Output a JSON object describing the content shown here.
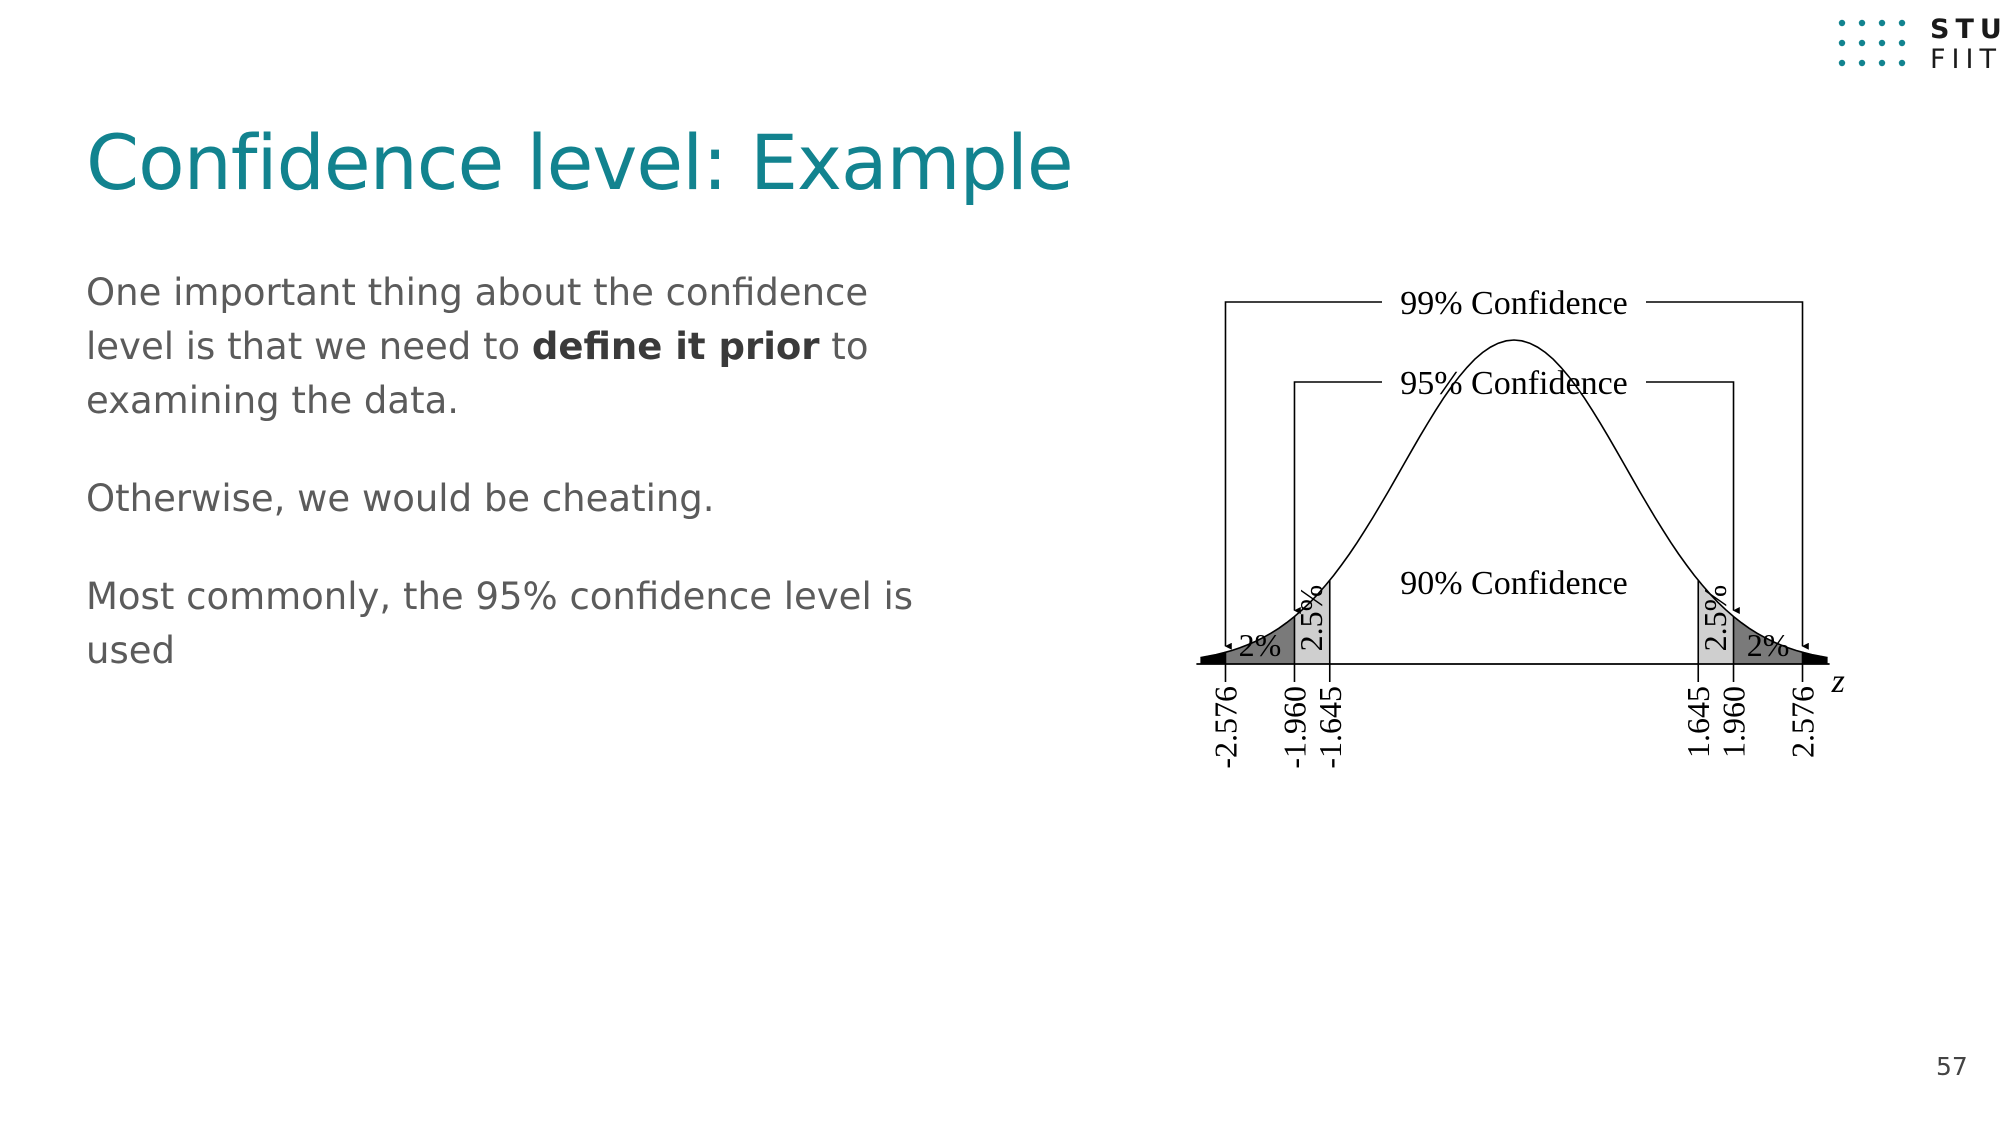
{
  "logo": {
    "line1": "STU",
    "line2": "FIIT"
  },
  "title": "Confidence level: Example",
  "paragraphs": {
    "p1_before": "One important thing about the confidence level is that we need to ",
    "p1_bold": "define it prior",
    "p1_after": " to examining the data.",
    "p2": "Otherwise, we would be cheating.",
    "p3": "Most commonly, the 95% confidence level is used"
  },
  "figure": {
    "label_99": "99% Confidence",
    "label_95": "95% Confidence",
    "label_90": "90% Confidence",
    "tail_2_left": "2%",
    "tail_25_left": "2.5%",
    "tail_25_right": "2.5%",
    "tail_2_right": "2%",
    "axis_label": "z",
    "ticks": [
      {
        "value": -2.576,
        "label": "-2.576"
      },
      {
        "value": -1.96,
        "label": "-1.960"
      },
      {
        "value": -1.645,
        "label": "-1.645"
      },
      {
        "value": 1.645,
        "label": "1.645"
      },
      {
        "value": 1.96,
        "label": "1.960"
      },
      {
        "value": 2.576,
        "label": "2.576"
      }
    ]
  },
  "page_number": "57",
  "colors": {
    "accent": "#12838f",
    "body_text": "#5b5b5b",
    "logo_dots": "#12838f"
  }
}
